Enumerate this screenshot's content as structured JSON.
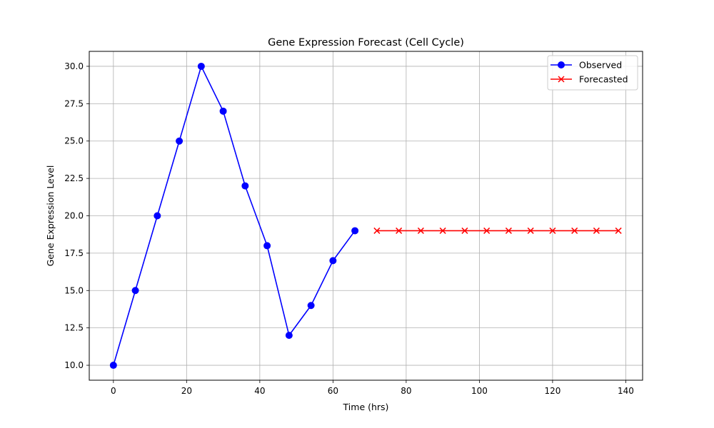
{
  "chart_data": {
    "type": "line",
    "title": "Gene Expression Forecast (Cell Cycle)",
    "xlabel": "Time (hrs)",
    "ylabel": "Gene Expression Level",
    "xlim": [
      -6.6,
      144.6
    ],
    "ylim": [
      9.0,
      31.0
    ],
    "xticks": [
      0,
      20,
      40,
      60,
      80,
      100,
      120,
      140
    ],
    "yticks": [
      10.0,
      12.5,
      15.0,
      17.5,
      20.0,
      22.5,
      25.0,
      27.5,
      30.0
    ],
    "grid": true,
    "legend_position": "top-right",
    "series": [
      {
        "name": "Observed",
        "color": "#0000ff",
        "marker": "circle",
        "x": [
          0,
          6,
          12,
          18,
          24,
          30,
          36,
          42,
          48,
          54,
          60,
          66
        ],
        "y": [
          10,
          15,
          20,
          25,
          30,
          27,
          22,
          18,
          12,
          14,
          17,
          19
        ]
      },
      {
        "name": "Forecasted",
        "color": "#ff0000",
        "marker": "x",
        "x": [
          72,
          78,
          84,
          90,
          96,
          102,
          108,
          114,
          120,
          126,
          132,
          138
        ],
        "y": [
          19,
          19,
          19,
          19,
          19,
          19,
          19,
          19,
          19,
          19,
          19,
          19
        ]
      }
    ]
  }
}
